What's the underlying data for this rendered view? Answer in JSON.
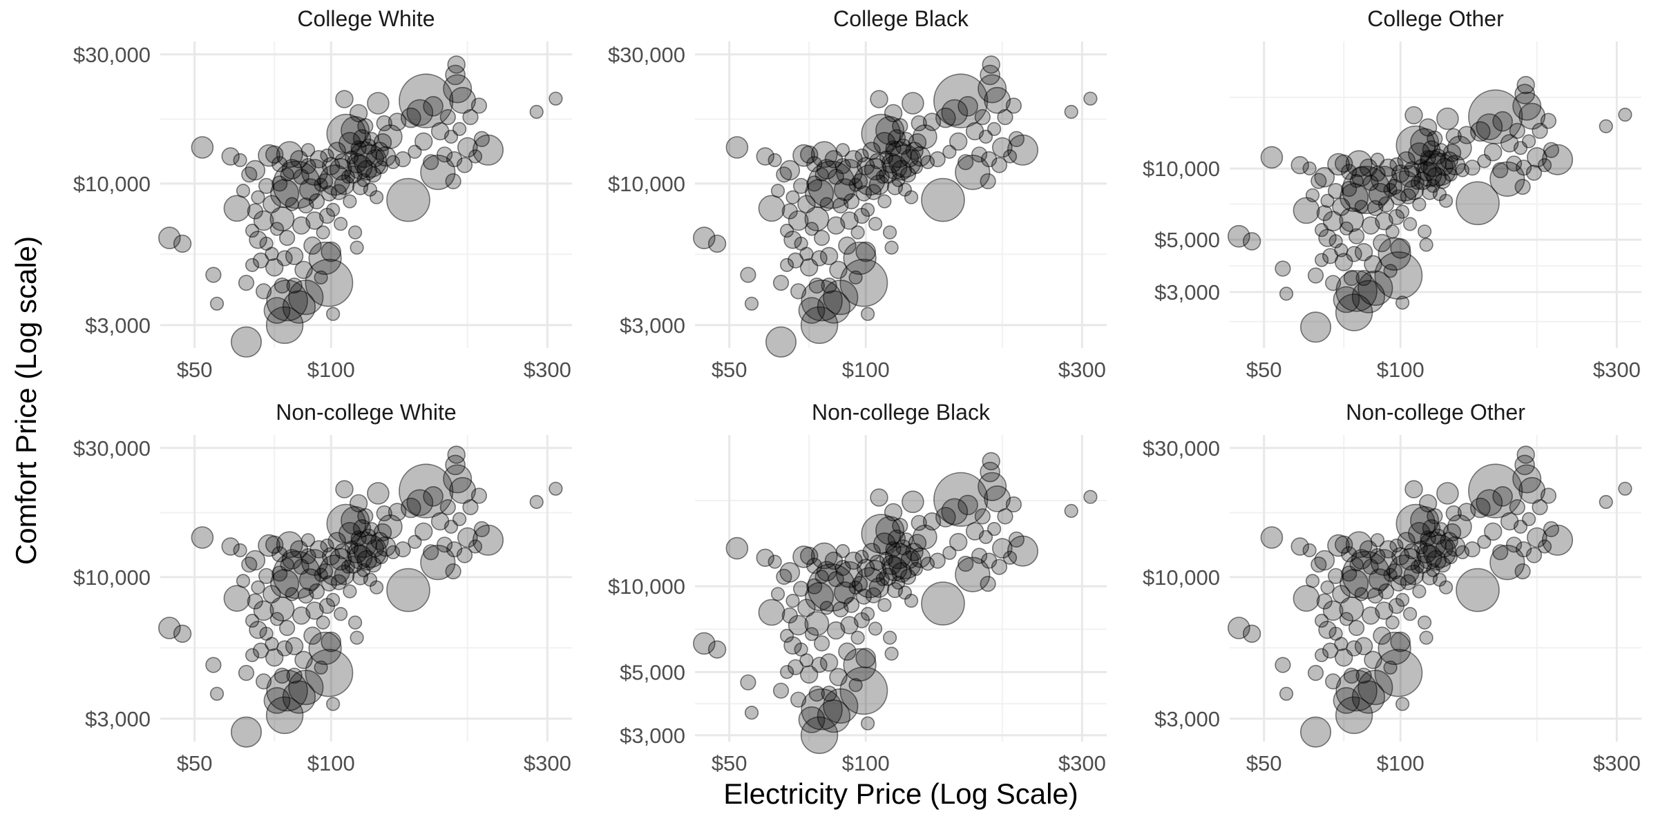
{
  "figure": {
    "xlabel": "Electricity Price (Log Scale)",
    "ylabel": "Comfort Price (Log scale)"
  },
  "chart_data": {
    "type": "scatter",
    "layout": "facet-grid 2 rows x 3 columns",
    "x_scale": "log",
    "y_scale": "log",
    "grid": true,
    "marker": "semi-transparent black circles sized by a third variable",
    "points": [
      {
        "x": 44,
        "y": 6300,
        "s": 10
      },
      {
        "x": 47,
        "y": 6000,
        "s": 8
      },
      {
        "x": 52,
        "y": 13600,
        "s": 10
      },
      {
        "x": 55,
        "y": 4600,
        "s": 7
      },
      {
        "x": 56,
        "y": 3600,
        "s": 6
      },
      {
        "x": 60,
        "y": 12600,
        "s": 8
      },
      {
        "x": 62,
        "y": 8100,
        "s": 12
      },
      {
        "x": 63,
        "y": 12200,
        "s": 6
      },
      {
        "x": 64,
        "y": 9400,
        "s": 6
      },
      {
        "x": 65,
        "y": 2600,
        "s": 14
      },
      {
        "x": 65,
        "y": 4300,
        "s": 7
      },
      {
        "x": 66,
        "y": 10800,
        "s": 7
      },
      {
        "x": 67,
        "y": 5000,
        "s": 6
      },
      {
        "x": 67,
        "y": 6700,
        "s": 6
      },
      {
        "x": 68,
        "y": 7900,
        "s": 7
      },
      {
        "x": 68,
        "y": 11200,
        "s": 9
      },
      {
        "x": 69,
        "y": 6200,
        "s": 8
      },
      {
        "x": 69,
        "y": 8900,
        "s": 6
      },
      {
        "x": 70,
        "y": 5200,
        "s": 7
      },
      {
        "x": 71,
        "y": 4000,
        "s": 7
      },
      {
        "x": 71,
        "y": 7300,
        "s": 9
      },
      {
        "x": 72,
        "y": 6000,
        "s": 6
      },
      {
        "x": 72,
        "y": 9800,
        "s": 7
      },
      {
        "x": 73,
        "y": 12700,
        "s": 10
      },
      {
        "x": 74,
        "y": 5500,
        "s": 6
      },
      {
        "x": 74,
        "y": 8400,
        "s": 8
      },
      {
        "x": 75,
        "y": 4900,
        "s": 8
      },
      {
        "x": 75,
        "y": 12800,
        "s": 8
      },
      {
        "x": 76,
        "y": 3400,
        "s": 12
      },
      {
        "x": 76,
        "y": 6800,
        "s": 6
      },
      {
        "x": 77,
        "y": 10000,
        "s": 7
      },
      {
        "x": 77,
        "y": 11800,
        "s": 7
      },
      {
        "x": 78,
        "y": 4200,
        "s": 7
      },
      {
        "x": 78,
        "y": 7400,
        "s": 11
      },
      {
        "x": 79,
        "y": 3000,
        "s": 17
      },
      {
        "x": 79,
        "y": 5300,
        "s": 7
      },
      {
        "x": 79,
        "y": 9200,
        "s": 13
      },
      {
        "x": 80,
        "y": 3700,
        "s": 19
      },
      {
        "x": 80,
        "y": 6300,
        "s": 7
      },
      {
        "x": 80,
        "y": 10800,
        "s": 6
      },
      {
        "x": 81,
        "y": 12800,
        "s": 12
      },
      {
        "x": 82,
        "y": 8400,
        "s": 6
      },
      {
        "x": 82,
        "y": 11300,
        "s": 9
      },
      {
        "x": 83,
        "y": 4200,
        "s": 7
      },
      {
        "x": 83,
        "y": 5400,
        "s": 8
      },
      {
        "x": 84,
        "y": 9900,
        "s": 22
      },
      {
        "x": 85,
        "y": 3500,
        "s": 15
      },
      {
        "x": 85,
        "y": 12300,
        "s": 8
      },
      {
        "x": 86,
        "y": 7000,
        "s": 8
      },
      {
        "x": 86,
        "y": 10600,
        "s": 7
      },
      {
        "x": 87,
        "y": 4800,
        "s": 8
      },
      {
        "x": 88,
        "y": 3800,
        "s": 16
      },
      {
        "x": 88,
        "y": 8300,
        "s": 7
      },
      {
        "x": 89,
        "y": 11600,
        "s": 7
      },
      {
        "x": 89,
        "y": 13300,
        "s": 6
      },
      {
        "x": 90,
        "y": 9500,
        "s": 10
      },
      {
        "x": 91,
        "y": 5900,
        "s": 8
      },
      {
        "x": 92,
        "y": 7300,
        "s": 8
      },
      {
        "x": 92,
        "y": 11000,
        "s": 12
      },
      {
        "x": 93,
        "y": 8600,
        "s": 7
      },
      {
        "x": 94,
        "y": 12300,
        "s": 8
      },
      {
        "x": 95,
        "y": 4500,
        "s": 6
      },
      {
        "x": 95,
        "y": 9900,
        "s": 6
      },
      {
        "x": 96,
        "y": 6600,
        "s": 6
      },
      {
        "x": 97,
        "y": 5300,
        "s": 15
      },
      {
        "x": 97,
        "y": 10200,
        "s": 7
      },
      {
        "x": 98,
        "y": 7600,
        "s": 7
      },
      {
        "x": 98,
        "y": 12700,
        "s": 6
      },
      {
        "x": 99,
        "y": 4300,
        "s": 22
      },
      {
        "x": 99,
        "y": 9200,
        "s": 7
      },
      {
        "x": 100,
        "y": 11600,
        "s": 8
      },
      {
        "x": 100,
        "y": 5600,
        "s": 9
      },
      {
        "x": 101,
        "y": 3300,
        "s": 6
      },
      {
        "x": 101,
        "y": 8000,
        "s": 6
      },
      {
        "x": 102,
        "y": 10300,
        "s": 14
      },
      {
        "x": 103,
        "y": 13200,
        "s": 8
      },
      {
        "x": 104,
        "y": 9300,
        "s": 7
      },
      {
        "x": 105,
        "y": 11300,
        "s": 10
      },
      {
        "x": 105,
        "y": 7100,
        "s": 6
      },
      {
        "x": 106,
        "y": 12100,
        "s": 7
      },
      {
        "x": 107,
        "y": 20500,
        "s": 8
      },
      {
        "x": 107,
        "y": 9900,
        "s": 9
      },
      {
        "x": 108,
        "y": 15300,
        "s": 18
      },
      {
        "x": 109,
        "y": 10600,
        "s": 6
      },
      {
        "x": 110,
        "y": 14100,
        "s": 10
      },
      {
        "x": 110,
        "y": 8600,
        "s": 6
      },
      {
        "x": 111,
        "y": 12500,
        "s": 6
      },
      {
        "x": 112,
        "y": 10800,
        "s": 8
      },
      {
        "x": 113,
        "y": 6600,
        "s": 6
      },
      {
        "x": 113,
        "y": 15700,
        "s": 13
      },
      {
        "x": 114,
        "y": 5800,
        "s": 6
      },
      {
        "x": 114,
        "y": 11900,
        "s": 9
      },
      {
        "x": 115,
        "y": 18200,
        "s": 8
      },
      {
        "x": 115,
        "y": 13500,
        "s": 7
      },
      {
        "x": 116,
        "y": 9700,
        "s": 7
      },
      {
        "x": 116,
        "y": 11500,
        "s": 11
      },
      {
        "x": 117,
        "y": 14700,
        "s": 8
      },
      {
        "x": 118,
        "y": 10300,
        "s": 6
      },
      {
        "x": 118,
        "y": 12800,
        "s": 12
      },
      {
        "x": 119,
        "y": 16300,
        "s": 7
      },
      {
        "x": 120,
        "y": 11200,
        "s": 9
      },
      {
        "x": 121,
        "y": 13700,
        "s": 7
      },
      {
        "x": 122,
        "y": 9500,
        "s": 6
      },
      {
        "x": 122,
        "y": 12100,
        "s": 15
      },
      {
        "x": 123,
        "y": 14600,
        "s": 6
      },
      {
        "x": 124,
        "y": 10800,
        "s": 7
      },
      {
        "x": 125,
        "y": 12400,
        "s": 8
      },
      {
        "x": 126,
        "y": 8900,
        "s": 6
      },
      {
        "x": 127,
        "y": 19800,
        "s": 10
      },
      {
        "x": 128,
        "y": 13200,
        "s": 8
      },
      {
        "x": 129,
        "y": 11500,
        "s": 6
      },
      {
        "x": 130,
        "y": 14200,
        "s": 8
      },
      {
        "x": 131,
        "y": 16700,
        "s": 7
      },
      {
        "x": 132,
        "y": 12600,
        "s": 9
      },
      {
        "x": 135,
        "y": 14900,
        "s": 11
      },
      {
        "x": 137,
        "y": 12000,
        "s": 6
      },
      {
        "x": 140,
        "y": 16900,
        "s": 8
      },
      {
        "x": 144,
        "y": 12300,
        "s": 7
      },
      {
        "x": 148,
        "y": 8700,
        "s": 20
      },
      {
        "x": 150,
        "y": 17500,
        "s": 9
      },
      {
        "x": 153,
        "y": 13100,
        "s": 6
      },
      {
        "x": 157,
        "y": 18300,
        "s": 12
      },
      {
        "x": 160,
        "y": 14300,
        "s": 8
      },
      {
        "x": 162,
        "y": 20200,
        "s": 25
      },
      {
        "x": 166,
        "y": 12000,
        "s": 7
      },
      {
        "x": 168,
        "y": 19300,
        "s": 9
      },
      {
        "x": 172,
        "y": 11000,
        "s": 16
      },
      {
        "x": 174,
        "y": 15600,
        "s": 8
      },
      {
        "x": 178,
        "y": 12800,
        "s": 7
      },
      {
        "x": 181,
        "y": 17600,
        "s": 7
      },
      {
        "x": 184,
        "y": 14900,
        "s": 6
      },
      {
        "x": 186,
        "y": 10200,
        "s": 7
      },
      {
        "x": 187,
        "y": 12300,
        "s": 7
      },
      {
        "x": 188,
        "y": 25200,
        "s": 9
      },
      {
        "x": 189,
        "y": 27500,
        "s": 8
      },
      {
        "x": 190,
        "y": 22400,
        "s": 13
      },
      {
        "x": 192,
        "y": 15900,
        "s": 6
      },
      {
        "x": 195,
        "y": 20300,
        "s": 12
      },
      {
        "x": 197,
        "y": 11700,
        "s": 7
      },
      {
        "x": 200,
        "y": 13600,
        "s": 9
      },
      {
        "x": 203,
        "y": 17600,
        "s": 7
      },
      {
        "x": 208,
        "y": 12600,
        "s": 6
      },
      {
        "x": 212,
        "y": 19400,
        "s": 7
      },
      {
        "x": 215,
        "y": 14600,
        "s": 7
      },
      {
        "x": 222,
        "y": 13300,
        "s": 14
      },
      {
        "x": 284,
        "y": 18400,
        "s": 6
      },
      {
        "x": 313,
        "y": 20600,
        "s": 6
      }
    ],
    "panels": [
      {
        "title": "College White",
        "xlim": [
          42,
          340
        ],
        "ylim": [
          2470,
          33500
        ],
        "xticks": [
          {
            "value": 50,
            "label": "$50"
          },
          {
            "value": 100,
            "label": "$100"
          },
          {
            "value": 300,
            "label": "$300"
          }
        ],
        "xminor": [
          75,
          200
        ],
        "yticks": [
          {
            "value": 3000,
            "label": "$3,000"
          },
          {
            "value": 10000,
            "label": "$10,000"
          },
          {
            "value": 30000,
            "label": "$30,000"
          }
        ],
        "yminor": [
          5480,
          17300
        ],
        "yshift": 1.0
      },
      {
        "title": "College Black",
        "xlim": [
          42,
          340
        ],
        "ylim": [
          2470,
          33500
        ],
        "xticks": [
          {
            "value": 50,
            "label": "$50"
          },
          {
            "value": 100,
            "label": "$100"
          },
          {
            "value": 300,
            "label": "$300"
          }
        ],
        "xminor": [
          75,
          200
        ],
        "yticks": [
          {
            "value": 3000,
            "label": "$3,000"
          },
          {
            "value": 10000,
            "label": "$10,000"
          },
          {
            "value": 30000,
            "label": "$30,000"
          }
        ],
        "yminor": [
          5480,
          17300
        ],
        "yshift": 1.0
      },
      {
        "title": "College Other",
        "xlim": [
          42,
          340
        ],
        "ylim": [
          1740,
          34500
        ],
        "xticks": [
          {
            "value": 50,
            "label": "$50"
          },
          {
            "value": 100,
            "label": "$100"
          },
          {
            "value": 300,
            "label": "$300"
          }
        ],
        "xminor": [
          75,
          200
        ],
        "yticks": [
          {
            "value": 3000,
            "label": "$3,000"
          },
          {
            "value": 5000,
            "label": "$5,000"
          },
          {
            "value": 10000,
            "label": "$10,000"
          }
        ],
        "yminor": [
          2250,
          3870,
          7070,
          20000
        ],
        "yshift": 0.82
      },
      {
        "title": "Non-college White",
        "xlim": [
          42,
          340
        ],
        "ylim": [
          2470,
          33500
        ],
        "xticks": [
          {
            "value": 50,
            "label": "$50"
          },
          {
            "value": 100,
            "label": "$100"
          },
          {
            "value": 300,
            "label": "$300"
          }
        ],
        "xminor": [
          75,
          200
        ],
        "yticks": [
          {
            "value": 3000,
            "label": "$3,000"
          },
          {
            "value": 10000,
            "label": "$10,000"
          },
          {
            "value": 30000,
            "label": "$30,000"
          }
        ],
        "yminor": [
          5480,
          17300
        ],
        "yshift": 1.03
      },
      {
        "title": "Non-college Black",
        "xlim": [
          42,
          340
        ],
        "ylim": [
          2850,
          34000
        ],
        "xticks": [
          {
            "value": 50,
            "label": "$50"
          },
          {
            "value": 100,
            "label": "$100"
          },
          {
            "value": 300,
            "label": "$300"
          }
        ],
        "xminor": [
          75,
          200
        ],
        "yticks": [
          {
            "value": 3000,
            "label": "$3,000"
          },
          {
            "value": 5000,
            "label": "$5,000"
          },
          {
            "value": 10000,
            "label": "$10,000"
          }
        ],
        "yminor": [
          3870,
          7070,
          20000
        ],
        "yshift": 1.0
      },
      {
        "title": "Non-college Other",
        "xlim": [
          42,
          340
        ],
        "ylim": [
          2470,
          33500
        ],
        "xticks": [
          {
            "value": 50,
            "label": "$50"
          },
          {
            "value": 100,
            "label": "$100"
          },
          {
            "value": 300,
            "label": "$300"
          }
        ],
        "xminor": [
          75,
          200
        ],
        "yticks": [
          {
            "value": 3000,
            "label": "$3,000"
          },
          {
            "value": 10000,
            "label": "$10,000"
          },
          {
            "value": 30000,
            "label": "$30,000"
          }
        ],
        "yminor": [
          5480,
          17300
        ],
        "yshift": 1.03
      }
    ]
  }
}
